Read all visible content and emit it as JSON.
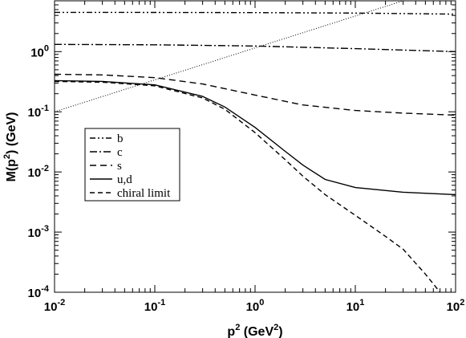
{
  "chart_data": {
    "type": "line",
    "xlabel": "p",
    "xlabel_sup": "2",
    "xlabel_units_pre": " (GeV",
    "xlabel_units_sup": "2",
    "xlabel_units_post": ")",
    "ylabel": "M(p",
    "ylabel_sup": "2",
    "ylabel_post": ") (GeV)",
    "x_scale": "log",
    "y_scale": "log",
    "xlim": [
      0.01,
      100
    ],
    "ylim": [
      0.0001,
      7
    ],
    "grid": false,
    "legend_position": "middle-left",
    "x_ticks": [
      {
        "base": "10",
        "exp": "-2",
        "value": 0.01
      },
      {
        "base": "10",
        "exp": "-1",
        "value": 0.1
      },
      {
        "base": "10",
        "exp": "0",
        "value": 1
      },
      {
        "base": "10",
        "exp": "1",
        "value": 10
      },
      {
        "base": "10",
        "exp": "2",
        "value": 100
      }
    ],
    "y_ticks": [
      {
        "base": "10",
        "exp": "-4",
        "value": 0.0001
      },
      {
        "base": "10",
        "exp": "-3",
        "value": 0.001
      },
      {
        "base": "10",
        "exp": "-2",
        "value": 0.01
      },
      {
        "base": "10",
        "exp": "-1",
        "value": 0.1
      },
      {
        "base": "10",
        "exp": "0",
        "value": 1
      }
    ],
    "series": [
      {
        "name": "b",
        "dash": "7,3,2,3,2,3",
        "x": [
          0.01,
          0.1,
          1,
          10,
          100
        ],
        "y": [
          4.5,
          4.48,
          4.45,
          4.38,
          4.2
        ]
      },
      {
        "name": "c",
        "dash": "9,3,2,3",
        "x": [
          0.01,
          0.1,
          1,
          10,
          100
        ],
        "y": [
          1.32,
          1.3,
          1.24,
          1.12,
          1.0
        ]
      },
      {
        "name": "s",
        "dash": "8,5",
        "x": [
          0.01,
          0.03,
          0.1,
          0.3,
          1,
          3,
          10,
          30,
          100
        ],
        "y": [
          0.42,
          0.41,
          0.37,
          0.29,
          0.19,
          0.13,
          0.105,
          0.095,
          0.088
        ]
      },
      {
        "name": "u,d",
        "dash": "",
        "x": [
          0.01,
          0.03,
          0.1,
          0.3,
          0.5,
          1,
          2,
          3,
          5,
          10,
          30,
          100
        ],
        "y": [
          0.33,
          0.32,
          0.28,
          0.18,
          0.12,
          0.055,
          0.022,
          0.013,
          0.0075,
          0.0055,
          0.0046,
          0.0042
        ]
      },
      {
        "name": "chiral limit",
        "dash": "6,4",
        "x": [
          0.01,
          0.03,
          0.1,
          0.3,
          0.5,
          1,
          2,
          3,
          5,
          10,
          20,
          30,
          50,
          70
        ],
        "y": [
          0.32,
          0.31,
          0.27,
          0.17,
          0.11,
          0.045,
          0.016,
          0.0085,
          0.0042,
          0.0019,
          0.00085,
          0.00052,
          0.0002,
          0.0001
        ]
      }
    ],
    "reference_line": {
      "dash": "1,2",
      "x": [
        0.01,
        30
      ],
      "y": [
        0.1,
        7
      ]
    }
  }
}
